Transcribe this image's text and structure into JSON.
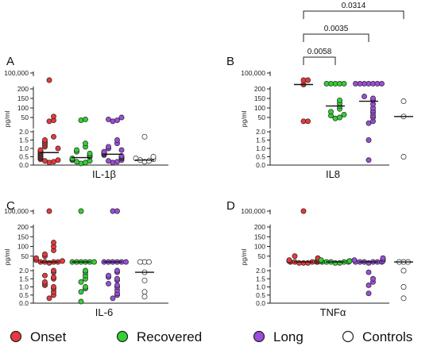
{
  "colors": {
    "Onset": "#e8393c",
    "Recovered": "#33d033",
    "Long": "#9b4ddb",
    "Controls": "#ffffff",
    "outline": "#222222"
  },
  "legend": [
    {
      "name": "Onset",
      "label": "Onset"
    },
    {
      "name": "Recovered",
      "label": "Recovered"
    },
    {
      "name": "Long",
      "label": "Long"
    },
    {
      "name": "Controls",
      "label": "Controls"
    }
  ],
  "chart_data": [
    {
      "type": "scatter",
      "panel": "A",
      "xlabel": "IL-1β",
      "ylabel": "pg/ml",
      "y_axis_segments": [
        {
          "range": [
            0,
            2.0
          ],
          "ticks": [
            "0.0",
            "0.5",
            "1.0",
            "1.5",
            "2.0"
          ]
        },
        {
          "range": [
            0,
            200
          ],
          "ticks": [
            "50",
            "100",
            "150",
            "200"
          ]
        },
        {
          "range": [
            100000,
            100000
          ],
          "ticks": [
            "100,000"
          ]
        }
      ],
      "groups": [
        {
          "name": "Onset",
          "median": 0.75,
          "values": [
            0.15,
            0.2,
            0.25,
            0.3,
            0.35,
            0.4,
            0.45,
            0.5,
            0.55,
            0.6,
            0.65,
            0.7,
            0.75,
            0.8,
            0.85,
            0.9,
            1.0,
            1.1,
            1.2,
            1.3,
            1.4,
            1.5,
            1.7,
            30,
            35,
            55,
            300
          ]
        },
        {
          "name": "Recovered",
          "median": 0.45,
          "values": [
            0.1,
            0.15,
            0.2,
            0.25,
            0.3,
            0.35,
            0.4,
            0.5,
            0.55,
            0.6,
            0.7,
            0.8,
            0.9,
            1.1,
            1.3,
            35,
            40
          ]
        },
        {
          "name": "Long",
          "median": 0.65,
          "values": [
            0.15,
            0.2,
            0.25,
            0.3,
            0.4,
            0.45,
            0.5,
            0.55,
            0.6,
            0.65,
            0.7,
            0.75,
            0.8,
            0.9,
            1.0,
            1.1,
            1.3,
            1.5,
            30,
            35,
            40,
            50
          ]
        },
        {
          "name": "Controls",
          "median": 0.3,
          "values": [
            0.2,
            0.25,
            0.3,
            0.35,
            0.4,
            0.5,
            1.7
          ]
        }
      ]
    },
    {
      "type": "scatter",
      "panel": "B",
      "xlabel": "IL8",
      "ylabel": "pg/ml",
      "y_axis_segments": [
        {
          "range": [
            0,
            2.0
          ],
          "ticks": [
            "0.0",
            "0.5",
            "1.0",
            "1.5",
            "2.0"
          ]
        },
        {
          "range": [
            0,
            200
          ],
          "ticks": [
            "50",
            "100",
            "150",
            "200"
          ]
        },
        {
          "range": [
            100000,
            100000
          ],
          "ticks": [
            "100,000"
          ]
        }
      ],
      "groups": [
        {
          "name": "Onset",
          "median": 250,
          "values": [
            30,
            30,
            250,
            300,
            350
          ]
        },
        {
          "name": "Recovered",
          "median": 110,
          "values": [
            45,
            50,
            60,
            65,
            80,
            95,
            110,
            125,
            140,
            260,
            260,
            260,
            260,
            260
          ]
        },
        {
          "name": "Long",
          "median": 135,
          "values": [
            0.3,
            1.5,
            20,
            30,
            50,
            60,
            75,
            85,
            100,
            120,
            140,
            150,
            160,
            260,
            260,
            260,
            260,
            260,
            260,
            260
          ]
        },
        {
          "name": "Controls",
          "median": 55,
          "values": [
            0.5,
            55,
            135
          ]
        }
      ],
      "comparisons": [
        {
          "label": "0.0058",
          "from": "Onset",
          "to": "Recovered"
        },
        {
          "label": "0.0035",
          "from": "Onset",
          "to": "Long"
        },
        {
          "label": "0.0314",
          "from": "Onset",
          "to": "Controls"
        }
      ]
    },
    {
      "type": "scatter",
      "panel": "C",
      "xlabel": "IL-6",
      "ylabel": "pg/ml",
      "y_axis_segments": [
        {
          "range": [
            0,
            2.0
          ],
          "ticks": [
            "0.0",
            "0.5",
            "1.0",
            "1.5",
            "2.0"
          ]
        },
        {
          "range": [
            0,
            200
          ],
          "ticks": [
            "50",
            "100",
            "150",
            "200"
          ]
        },
        {
          "range": [
            100000,
            100000
          ],
          "ticks": [
            "100,000"
          ]
        }
      ],
      "groups": [
        {
          "name": "Onset",
          "median": 20,
          "values": [
            0.3,
            0.5,
            0.7,
            0.9,
            1.0,
            1.1,
            1.2,
            1.3,
            1.5,
            1.6,
            1.7,
            1.9,
            2.0,
            15,
            20,
            20,
            20,
            20,
            25,
            30,
            40,
            50,
            60,
            80,
            100,
            120,
            100000
          ]
        },
        {
          "name": "Recovered",
          "median": 20,
          "values": [
            0.1,
            0.7,
            0.9,
            1.0,
            1.3,
            1.5,
            1.7,
            1.9,
            2.0,
            20,
            20,
            20,
            20,
            20,
            20,
            100000
          ]
        },
        {
          "name": "Long",
          "median": 20,
          "values": [
            0.3,
            0.5,
            0.6,
            0.8,
            1.0,
            1.1,
            1.2,
            1.4,
            1.5,
            1.6,
            1.7,
            1.9,
            2.0,
            20,
            20,
            20,
            20,
            20,
            20,
            100000,
            100000
          ]
        },
        {
          "name": "Controls",
          "median": 1.9,
          "values": [
            0.4,
            0.7,
            1.4,
            1.9,
            20,
            20,
            20
          ]
        }
      ]
    },
    {
      "type": "scatter",
      "panel": "D",
      "xlabel": "TNFα",
      "ylabel": "pg/ml",
      "y_axis_segments": [
        {
          "range": [
            0,
            2.0
          ],
          "ticks": [
            "0.0",
            "0.5",
            "1.0",
            "1.5",
            "2.0"
          ]
        },
        {
          "range": [
            0,
            200
          ],
          "ticks": [
            "50",
            "100",
            "150",
            "200"
          ]
        },
        {
          "range": [
            100000,
            100000
          ],
          "ticks": [
            "100,000"
          ]
        }
      ],
      "groups": [
        {
          "name": "Onset",
          "median": 20,
          "values": [
            15,
            15,
            15,
            20,
            20,
            20,
            20,
            20,
            25,
            25,
            25,
            30,
            30,
            35,
            40,
            50,
            100000
          ]
        },
        {
          "name": "Recovered",
          "median": 20,
          "values": [
            15,
            15,
            20,
            20,
            20,
            20,
            20,
            25,
            25,
            25,
            30
          ]
        },
        {
          "name": "Long",
          "median": 20,
          "values": [
            0.6,
            1.1,
            1.3,
            1.5,
            1.9,
            15,
            20,
            20,
            20,
            20,
            20,
            20,
            25,
            30,
            35,
            40
          ]
        },
        {
          "name": "Controls",
          "median": 20,
          "values": [
            0.3,
            1.0,
            2.0,
            20,
            20,
            20
          ]
        }
      ]
    }
  ]
}
